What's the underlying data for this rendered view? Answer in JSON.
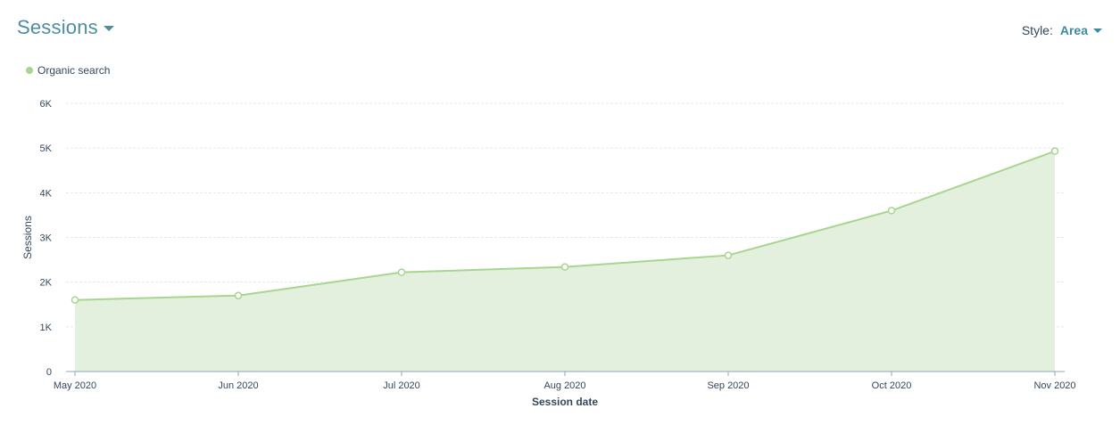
{
  "header": {
    "title": "Sessions"
  },
  "style_control": {
    "label": "Style:",
    "value": "Area"
  },
  "legend": {
    "items": [
      {
        "label": "Organic search",
        "color": "#a8d58f"
      }
    ]
  },
  "colors": {
    "area_fill": "#e4f0de",
    "line": "#a8d58f",
    "grid": "#e3e8ee",
    "axis": "#8fa4b8"
  },
  "chart_data": {
    "type": "area",
    "categories": [
      "May 2020",
      "Jun 2020",
      "Jul 2020",
      "Aug 2020",
      "Sep 2020",
      "Oct 2020",
      "Nov 2020"
    ],
    "series": [
      {
        "name": "Organic search",
        "values": [
          1600,
          1700,
          2220,
          2340,
          2600,
          3600,
          4930
        ]
      }
    ],
    "xlabel": "Session date",
    "ylabel": "Sessions",
    "ylim": [
      0,
      6000
    ],
    "yticks": [
      {
        "value": 0,
        "label": "0"
      },
      {
        "value": 1000,
        "label": "1K"
      },
      {
        "value": 2000,
        "label": "2K"
      },
      {
        "value": 3000,
        "label": "3K"
      },
      {
        "value": 4000,
        "label": "4K"
      },
      {
        "value": 5000,
        "label": "5K"
      },
      {
        "value": 6000,
        "label": "6K"
      }
    ],
    "grid": true,
    "legend_position": "top-left"
  }
}
